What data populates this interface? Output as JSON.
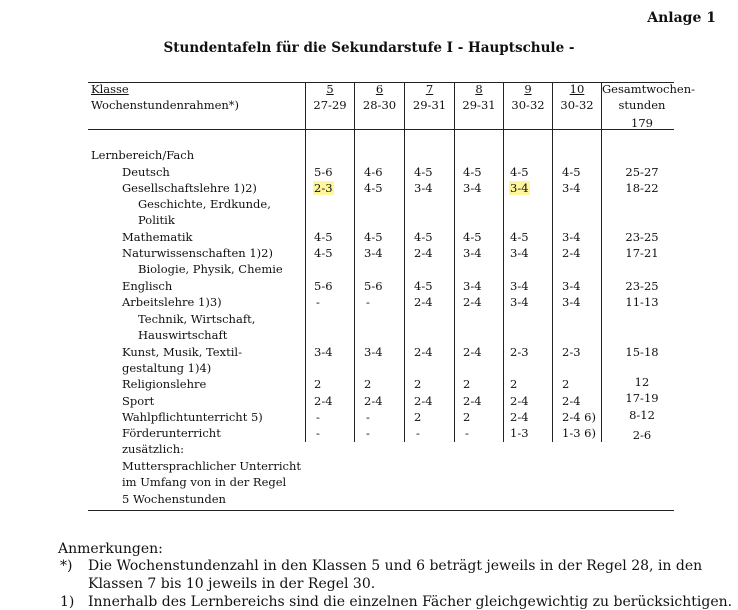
{
  "anlage": "Anlage 1",
  "title": "Stundentafeln für die Sekundarstufe I - Hauptschule -",
  "header": {
    "klasse_label": "Klasse",
    "rahmen_label": "Wochenstundenrahmen*)",
    "grades": [
      "5",
      "6",
      "7",
      "8",
      "9",
      "10"
    ],
    "ranges": [
      "27-29",
      "28-30",
      "29-31",
      "29-31",
      "30-32",
      "30-32"
    ],
    "total_label_1": "Gesamtwochen-",
    "total_label_2": "stunden",
    "total_value": "179"
  },
  "section_label": "Lernbereich/Fach",
  "rows": [
    {
      "name": "Deutsch",
      "values": [
        "5-6",
        "4-6",
        "4-5",
        "4-5",
        "4-5",
        "4-5"
      ],
      "total": "25-27"
    },
    {
      "name": "Gesellschaftslehre 1)2)",
      "values": [
        "2-3",
        "4-5",
        "3-4",
        "3-4",
        "3-4",
        "3-4"
      ],
      "total": "18-22"
    },
    {
      "name": "Mathematik",
      "values": [
        "4-5",
        "4-5",
        "4-5",
        "4-5",
        "4-5",
        "3-4"
      ],
      "total": "23-25"
    },
    {
      "name": "Naturwissenschaften 1)2)",
      "values": [
        "4-5",
        "3-4",
        "2-4",
        "3-4",
        "3-4",
        "2-4"
      ],
      "total": "17-21"
    },
    {
      "name": "Englisch",
      "values": [
        "5-6",
        "5-6",
        "4-5",
        "3-4",
        "3-4",
        "3-4"
      ],
      "total": "23-25"
    },
    {
      "name": "Arbeitslehre 1)3)",
      "values": [
        "-",
        "-",
        "2-4",
        "2-4",
        "3-4",
        "3-4"
      ],
      "total": "11-13"
    },
    {
      "name": "Kunst, Musik, Textil-",
      "values": [
        "3-4",
        "3-4",
        "2-4",
        "2-4",
        "2-3",
        "2-3"
      ],
      "total": "15-18"
    },
    {
      "name": "Religionslehre",
      "values": [
        "2",
        "2",
        "2",
        "2",
        "2",
        "2"
      ],
      "total": "12"
    },
    {
      "name": "Sport",
      "values": [
        "2-4",
        "2-4",
        "2-4",
        "2-4",
        "2-4",
        "2-4"
      ],
      "total": "17-19"
    },
    {
      "name": "Wahlpflichtunterricht 5)",
      "values": [
        "-",
        "-",
        "2",
        "2",
        "2-4",
        "2-4 6)"
      ],
      "total": "8-12"
    },
    {
      "name": "Förderunterricht",
      "values": [
        "-",
        "-",
        "-",
        "-",
        "1-3",
        "1-3 6)"
      ],
      "total": "2-6"
    }
  ],
  "sublabels": {
    "gesellschaft_1": "Geschichte, Erdkunde,",
    "gesellschaft_2": "Politik",
    "natur": "Biologie, Physik, Chemie",
    "arbeit_1": "Technik, Wirtschaft,",
    "arbeit_2": "Hauswirtschaft",
    "kunst_2": "gestaltung 1)4)"
  },
  "zusaetzlich": [
    "zusätzlich:",
    "Muttersprachlicher Unterricht",
    "im Umfang von in der Regel",
    "5 Wochenstunden"
  ],
  "notes": {
    "title": "Anmerkungen:",
    "star_marker": "*)",
    "star_line1": "Die Wochenstundenzahl in den Klassen 5 und 6 beträgt jeweils in der Regel 28, in den",
    "star_line2": "Klassen 7 bis 10 jeweils in der Regel 30.",
    "one_marker": "1)",
    "one_line": "Innerhalb des Lernbereichs sind die einzelnen Fächer gleichgewichtig zu berücksichtigen."
  }
}
